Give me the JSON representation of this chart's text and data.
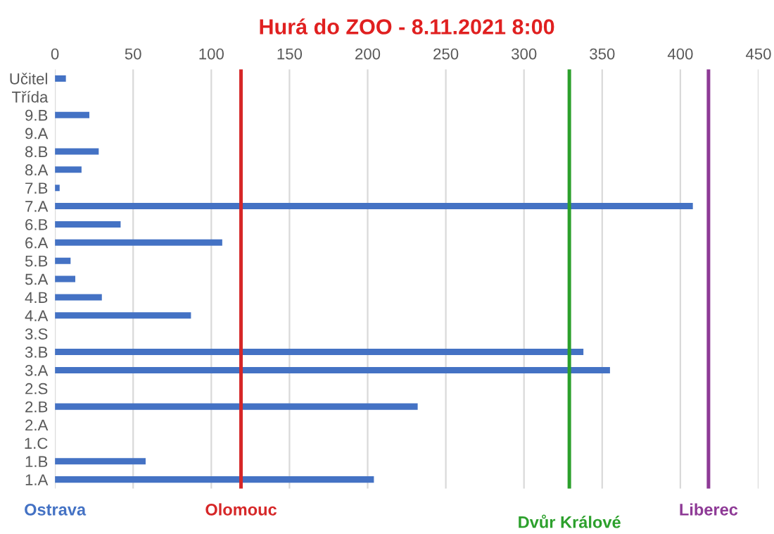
{
  "chart_data": {
    "type": "bar",
    "orientation": "horizontal",
    "title": "Hurá do ZOO - 8.11.2021 8:00",
    "categories": [
      "Učitel",
      "Třída",
      "9.B",
      "9.A",
      "8.B",
      "8.A",
      "7.B",
      "7.A",
      "6.B",
      "6.A",
      "5.B",
      "5.A",
      "4.B",
      "4.A",
      "3.S",
      "3.B",
      "3.A",
      "2.S",
      "2.B",
      "2.A",
      "1.C",
      "1.B",
      "1.A"
    ],
    "values": [
      7,
      null,
      22,
      null,
      28,
      17,
      3,
      408,
      42,
      107,
      10,
      13,
      30,
      87,
      null,
      338,
      355,
      null,
      232,
      null,
      null,
      58,
      204
    ],
    "color": "#4472c4",
    "xlim": [
      0,
      450
    ],
    "xticks": [
      0,
      50,
      100,
      150,
      200,
      250,
      300,
      350,
      400,
      450
    ],
    "grid": "x",
    "ref_lines": [
      {
        "axis": "x",
        "value": 119,
        "label": "Olomouc",
        "color": "#d62728"
      },
      {
        "axis": "x",
        "value": 329,
        "label": "Dvůr Králové",
        "color": "#2ca02c"
      },
      {
        "axis": "x",
        "value": 418,
        "label": "Liberec",
        "color": "#8e3a96"
      }
    ],
    "annotations": [
      "Ostrava"
    ]
  }
}
